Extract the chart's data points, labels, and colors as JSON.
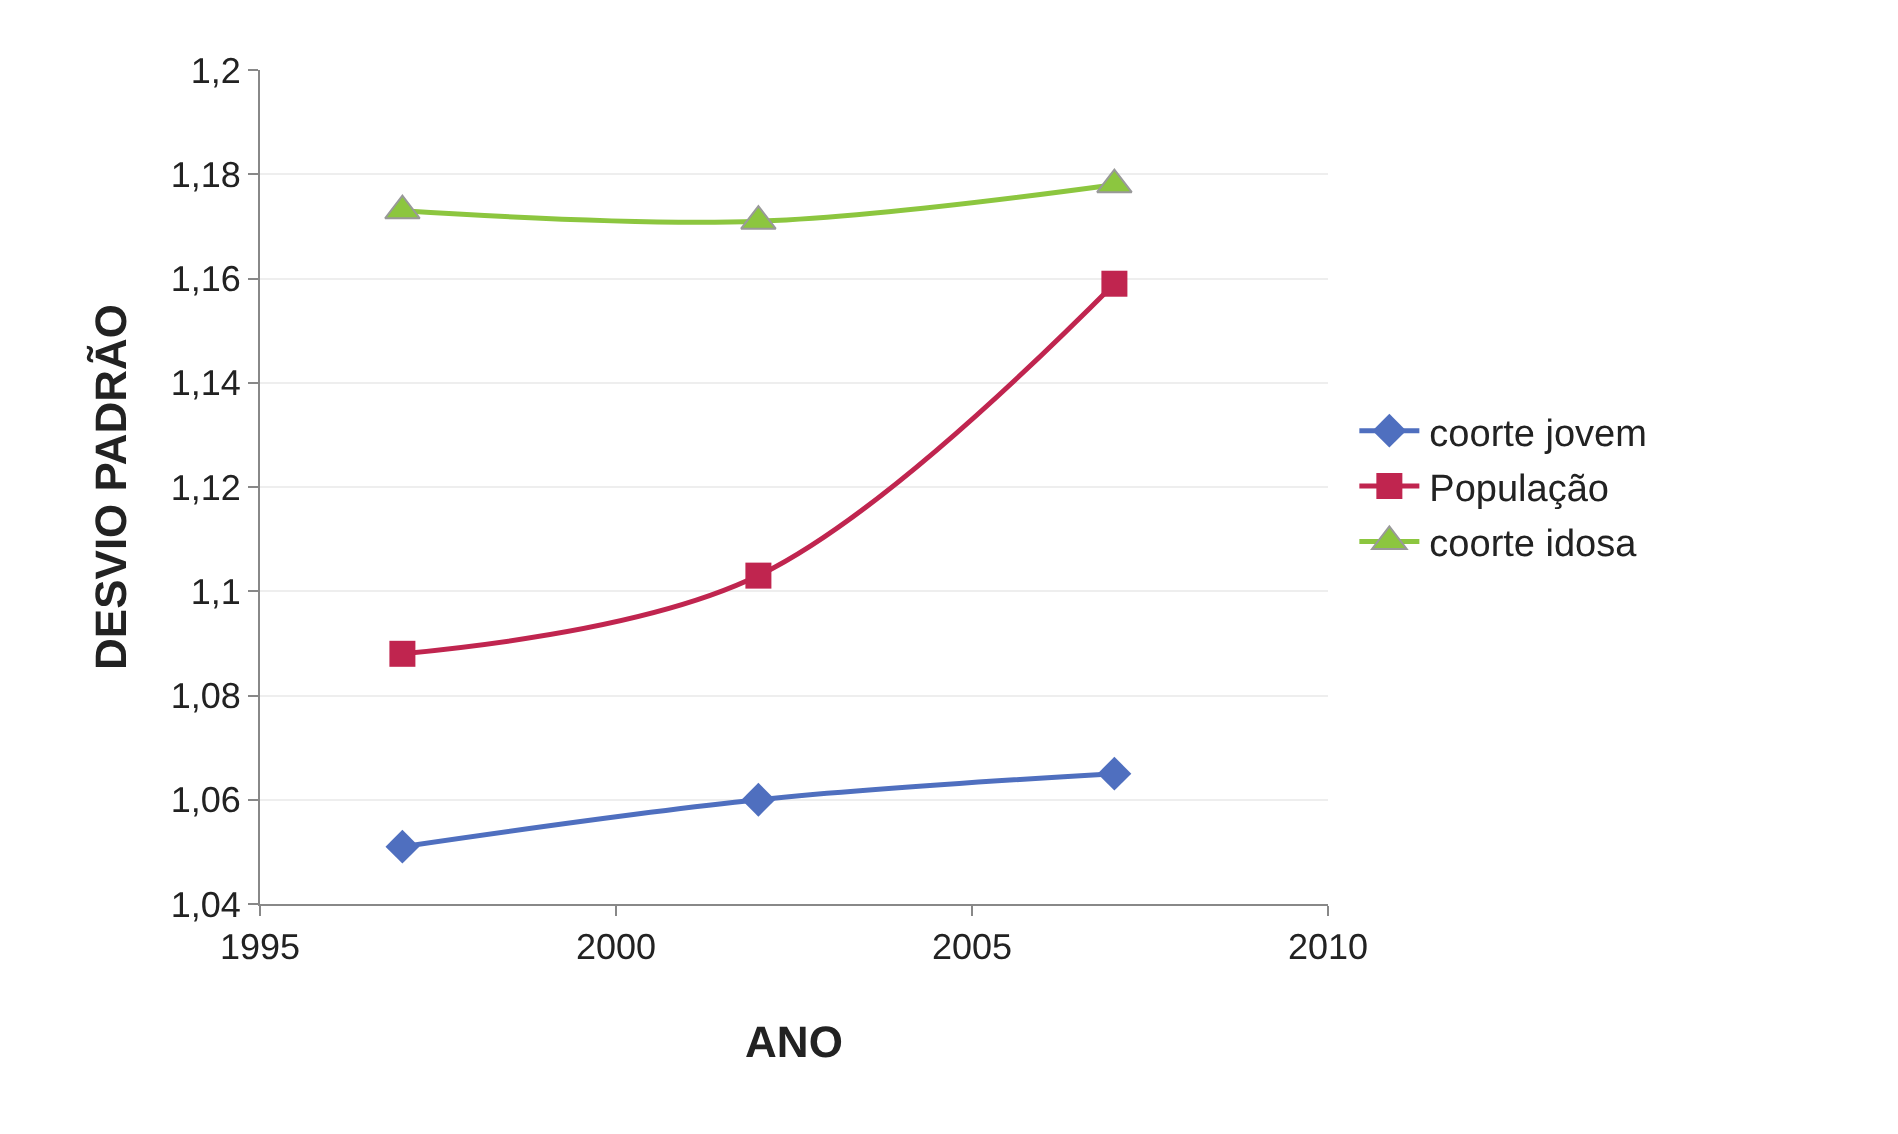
{
  "chart_data": {
    "type": "line",
    "xlabel": "ANO",
    "ylabel": "DESVIO PADRÃO",
    "xlim": [
      1995,
      2010
    ],
    "xticks": [
      1995,
      2000,
      2005,
      2010
    ],
    "ylim": [
      1.04,
      1.2
    ],
    "yticks": [
      {
        "value": 1.04,
        "label": "1,04"
      },
      {
        "value": 1.06,
        "label": "1,06"
      },
      {
        "value": 1.08,
        "label": "1,08"
      },
      {
        "value": 1.1,
        "label": "1,1"
      },
      {
        "value": 1.12,
        "label": "1,12"
      },
      {
        "value": 1.14,
        "label": "1,14"
      },
      {
        "value": 1.16,
        "label": "1,16"
      },
      {
        "value": 1.18,
        "label": "1,18"
      },
      {
        "value": 1.2,
        "label": "1,2"
      }
    ],
    "grid": "y",
    "legend": "right",
    "x": [
      1997,
      2002,
      2007
    ],
    "series": [
      {
        "name": "coorte jovem",
        "color": "#4f6fbf",
        "marker": "diamond",
        "values": [
          1.051,
          1.06,
          1.065
        ]
      },
      {
        "name": "População",
        "color": "#c0254f",
        "marker": "square",
        "values": [
          1.088,
          1.103,
          1.159
        ]
      },
      {
        "name": "coorte idosa",
        "color": "#8cc63f",
        "marker": "triangle",
        "values": [
          1.173,
          1.171,
          1.178
        ]
      }
    ]
  }
}
